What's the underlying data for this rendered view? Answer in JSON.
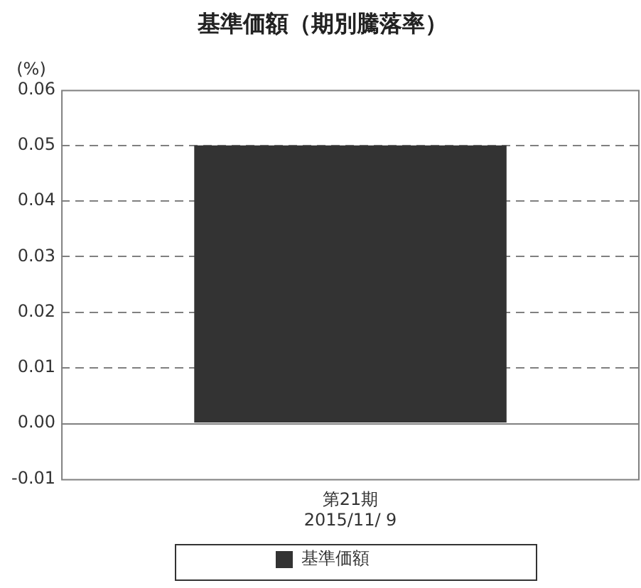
{
  "chart_data": {
    "type": "bar",
    "title": "基準価額（期別騰落率）",
    "ylabel": "(%)",
    "categories": [
      "第21期\n2015/11/ 9"
    ],
    "series": [
      {
        "name": "基準価額",
        "color": "#333333",
        "values": [
          0.05
        ]
      }
    ],
    "ylim": [
      -0.01,
      0.06
    ],
    "yticks": [
      {
        "value": -0.01,
        "label": "-0.01"
      },
      {
        "value": 0,
        "label": "0.00"
      },
      {
        "value": 0.01,
        "label": "0.01"
      },
      {
        "value": 0.02,
        "label": "0.02"
      },
      {
        "value": 0.03,
        "label": "0.03"
      },
      {
        "value": 0.04,
        "label": "0.04"
      },
      {
        "value": 0.05,
        "label": "0.05"
      },
      {
        "value": 0.06,
        "label": "0.06"
      }
    ],
    "grid": "y",
    "line_style": "dashed",
    "legend": "bottom"
  }
}
